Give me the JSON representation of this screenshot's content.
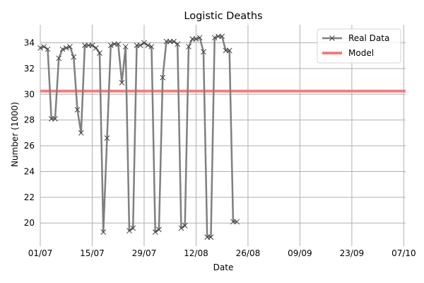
{
  "chart_data": {
    "type": "line",
    "title": "Logistic Deaths",
    "xlabel": "Date",
    "ylabel": "Number (1000)",
    "x_ticks": [
      "01/07",
      "15/07",
      "29/07",
      "12/08",
      "26/08",
      "09/09",
      "23/09",
      "07/10"
    ],
    "x_tick_days": [
      0,
      14,
      28,
      42,
      56,
      70,
      84,
      98
    ],
    "xlim_days": [
      0,
      98.5
    ],
    "ylim": [
      18.2,
      35.4
    ],
    "y_ticks": [
      20,
      22,
      24,
      26,
      28,
      30,
      32,
      34
    ],
    "grid": true,
    "legend_position": "top-right",
    "series": [
      {
        "name": "Real Data",
        "color": "#7f7f7f",
        "marker": "x",
        "points": [
          [
            0,
            33.6
          ],
          [
            1,
            33.7
          ],
          [
            2,
            33.5
          ],
          [
            3,
            28.1
          ],
          [
            4,
            28.1
          ],
          [
            5,
            32.8
          ],
          [
            6,
            33.5
          ],
          [
            7,
            33.6
          ],
          [
            8,
            33.7
          ],
          [
            9,
            32.9
          ],
          [
            10,
            28.8
          ],
          [
            11,
            27.0
          ],
          [
            12,
            33.8
          ],
          [
            13,
            33.8
          ],
          [
            14,
            33.8
          ],
          [
            15,
            33.6
          ],
          [
            16,
            33.2
          ],
          [
            17,
            19.3
          ],
          [
            18,
            26.6
          ],
          [
            19,
            33.8
          ],
          [
            20,
            33.9
          ],
          [
            21,
            33.9
          ],
          [
            22,
            30.9
          ],
          [
            23,
            33.7
          ],
          [
            24,
            19.4
          ],
          [
            25,
            19.6
          ],
          [
            26,
            33.8
          ],
          [
            27,
            33.8
          ],
          [
            28,
            34.0
          ],
          [
            29,
            33.8
          ],
          [
            30,
            33.7
          ],
          [
            31,
            19.3
          ],
          [
            32,
            19.5
          ],
          [
            33,
            31.3
          ],
          [
            34,
            34.1
          ],
          [
            35,
            34.1
          ],
          [
            36,
            34.1
          ],
          [
            37,
            33.9
          ],
          [
            38,
            19.6
          ],
          [
            39,
            19.8
          ],
          [
            40,
            33.7
          ],
          [
            41,
            34.3
          ],
          [
            42,
            34.3
          ],
          [
            43,
            34.4
          ],
          [
            44,
            33.3
          ],
          [
            45,
            18.9
          ],
          [
            46,
            18.9
          ],
          [
            47,
            34.4
          ],
          [
            48,
            34.5
          ],
          [
            49,
            34.5
          ],
          [
            50,
            33.4
          ],
          [
            51,
            33.4
          ],
          [
            52,
            20.1
          ],
          [
            53,
            20.1
          ]
        ]
      },
      {
        "name": "Model",
        "color": "#f08080",
        "points": [
          [
            0,
            30.25
          ],
          [
            98.5,
            30.25
          ]
        ]
      }
    ]
  }
}
